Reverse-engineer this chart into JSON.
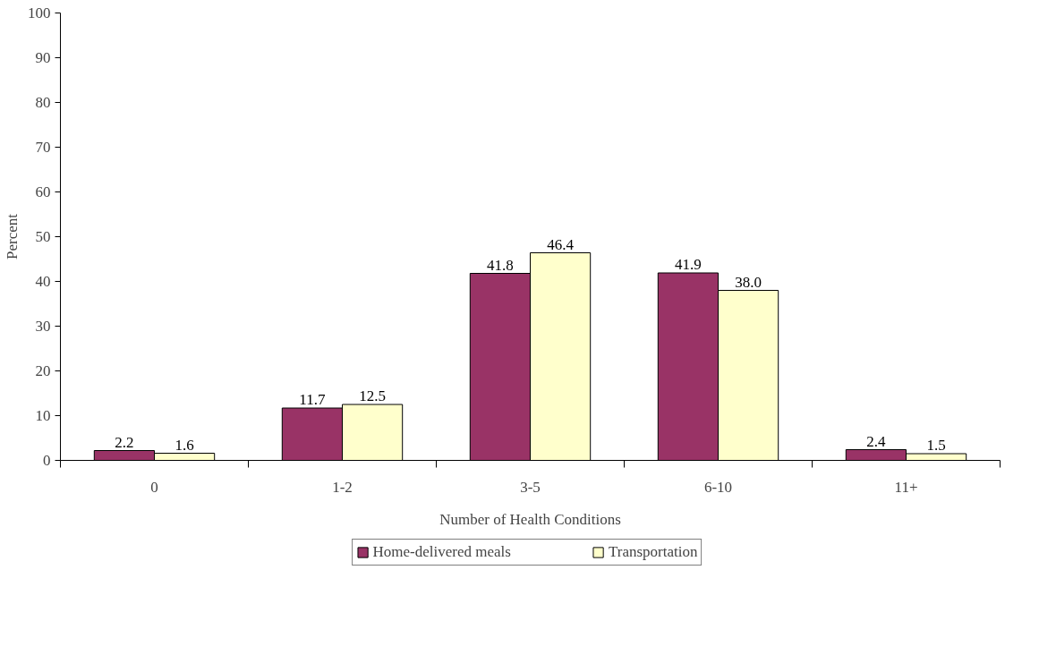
{
  "chart_data": {
    "type": "bar",
    "xlabel": "Number of Health Conditions",
    "ylabel": "Percent",
    "categories": [
      "0",
      "1-2",
      "3-5",
      "6-10",
      "11+"
    ],
    "series": [
      {
        "name": "Home-delivered meals",
        "color": "#993366",
        "values": [
          2.2,
          11.7,
          41.8,
          41.9,
          2.4
        ],
        "value_labels": [
          "2.2",
          "11.7",
          "41.8",
          "41.9",
          "2.4"
        ]
      },
      {
        "name": "Transportation",
        "color": "#ffffcc",
        "values": [
          1.6,
          12.5,
          46.4,
          38.0,
          1.5
        ],
        "value_labels": [
          "1.6",
          "12.5",
          "46.4",
          "38.0",
          "1.5"
        ]
      }
    ],
    "ylim": [
      0,
      100
    ],
    "yticks": [
      0,
      10,
      20,
      30,
      40,
      50,
      60,
      70,
      80,
      90,
      100
    ],
    "grid": false,
    "legend": "bottom"
  }
}
